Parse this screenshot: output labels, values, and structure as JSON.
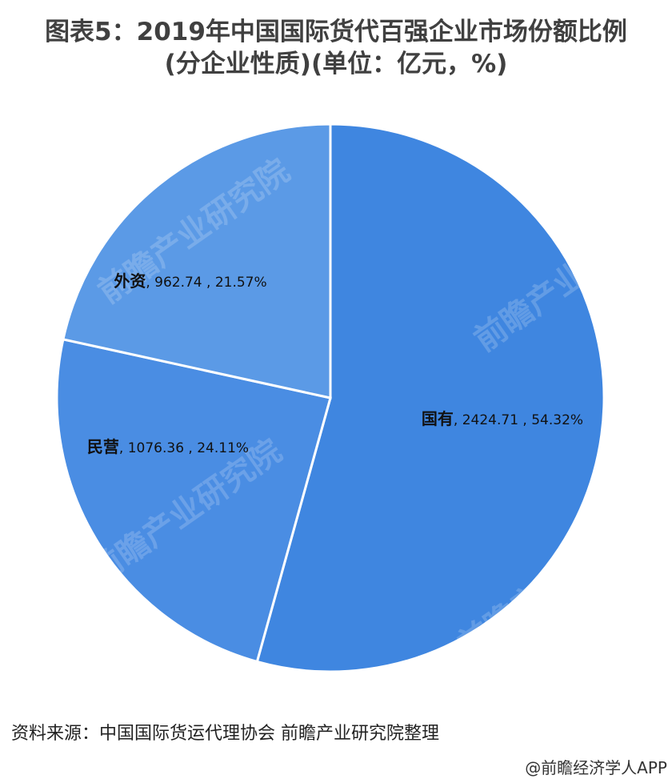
{
  "chart_data": {
    "type": "pie",
    "title": "图表5：2019年中国国际货代百强企业市场份额比例",
    "subtitle": "(分企业性质)(单位：亿元，%)",
    "slices": [
      {
        "name": "国有",
        "value": 2424.71,
        "percent": 54.32,
        "label": "国有, 2424.71 , 54.32%",
        "color": "#3f86e0"
      },
      {
        "name": "民营",
        "value": 1076.36,
        "percent": 24.11,
        "label": "民营, 1076.36 , 24.11%",
        "color": "#4a8de3"
      },
      {
        "name": "外资",
        "value": 962.74,
        "percent": 21.57,
        "label": "外资, 962.74 , 21.57%",
        "color": "#5b9ae6"
      }
    ],
    "start_angle_deg": 0,
    "direction": "clockwise",
    "legend": "none"
  },
  "source_note": "资料来源：中国国际货运代理协会 前瞻产业研究院整理",
  "app_credit": "@前瞻经济学人APP",
  "watermark": "前瞻产业研究院"
}
